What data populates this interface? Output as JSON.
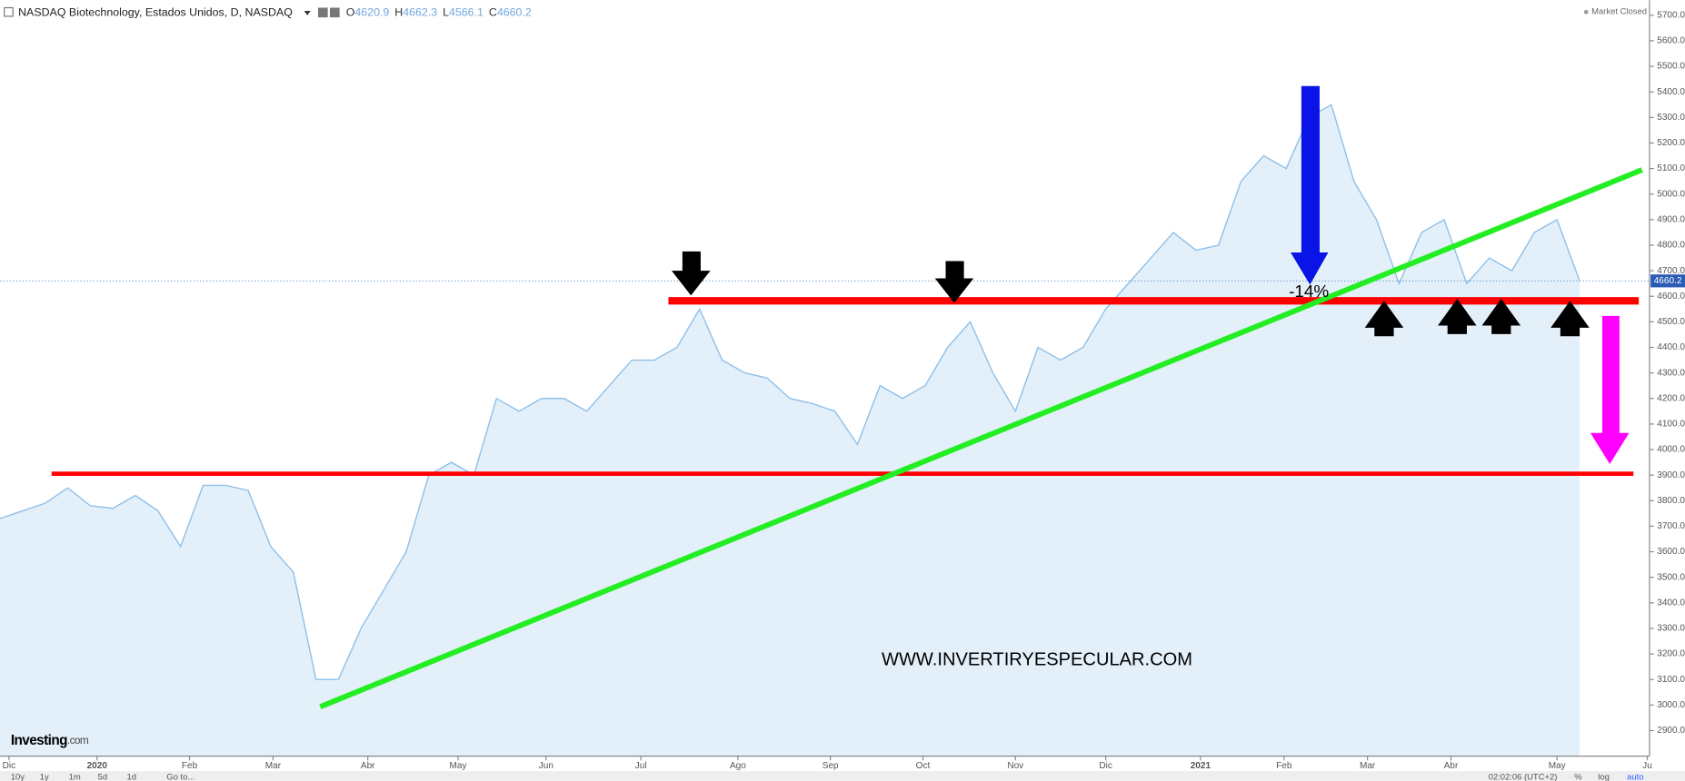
{
  "header": {
    "symbol": "NASDAQ Biotechnology, Estados Unidos, D, NASDAQ",
    "market_status": "Market Closed",
    "ohlc": [
      {
        "label": "O",
        "value": 4620.9
      },
      {
        "label": "H",
        "value": 4662.3
      },
      {
        "label": "L",
        "value": 4566.1
      },
      {
        "label": "C",
        "value": 4660.2
      }
    ]
  },
  "chart_data": {
    "type": "area",
    "series": [
      {
        "color": "#8fc0ea",
        "values": [
          3730,
          3760,
          3790,
          3850,
          3780,
          3770,
          3820,
          3760,
          3620,
          3860,
          3860,
          3840,
          3620,
          3520,
          3100,
          3100,
          3300,
          3450,
          3600,
          3900,
          3950,
          3900,
          4200,
          4150,
          4200,
          4200,
          4150,
          4250,
          4350,
          4350,
          4400,
          4550,
          4350,
          4300,
          4280,
          4200,
          4180,
          4150,
          4020,
          4250,
          4200,
          4250,
          4400,
          4500,
          4300,
          4150,
          4400,
          4350,
          4400,
          4550,
          4650,
          4750,
          4850,
          4780,
          4800,
          5050,
          5150,
          5100,
          5300,
          5350,
          5050,
          4900,
          4650,
          4850,
          4900,
          4650,
          4750,
          4700,
          4850,
          4900,
          4660.2
        ]
      }
    ],
    "xlim": [
      0,
      73.1
    ],
    "xticks": [
      {
        "value": 0.4,
        "label": "Dic"
      },
      {
        "value": 4.3,
        "label": "2020"
      },
      {
        "value": 8.4,
        "label": "Feb"
      },
      {
        "value": 12.1,
        "label": "Mar"
      },
      {
        "value": 16.3,
        "label": "Abr"
      },
      {
        "value": 20.3,
        "label": "May"
      },
      {
        "value": 24.2,
        "label": "Jun"
      },
      {
        "value": 28.4,
        "label": "Jul"
      },
      {
        "value": 32.7,
        "label": "Ago"
      },
      {
        "value": 36.8,
        "label": "Sep"
      },
      {
        "value": 40.9,
        "label": "Oct"
      },
      {
        "value": 45,
        "label": "Nov"
      },
      {
        "value": 49,
        "label": "Dic"
      },
      {
        "value": 53.2,
        "label": "2021"
      },
      {
        "value": 56.9,
        "label": "Feb"
      },
      {
        "value": 60.6,
        "label": "Mar"
      },
      {
        "value": 64.3,
        "label": "Abr"
      },
      {
        "value": 69,
        "label": "May"
      },
      {
        "value": 73,
        "label": "Ju"
      }
    ],
    "ylim": [
      2800,
      5759
    ],
    "yticks": [
      {
        "value": 2900,
        "label": "2900.0"
      },
      {
        "value": 3000,
        "label": "3000.0"
      },
      {
        "value": 3100,
        "label": "3100.0"
      },
      {
        "value": 3200,
        "label": "3200.0"
      },
      {
        "value": 3300,
        "label": "3300.0"
      },
      {
        "value": 3400,
        "label": "3400.0"
      },
      {
        "value": 3500,
        "label": "3500.0"
      },
      {
        "value": 3600,
        "label": "3600.0"
      },
      {
        "value": 3700,
        "label": "3700.0"
      },
      {
        "value": 3800,
        "label": "3800.0"
      },
      {
        "value": 3900,
        "label": "3900.0"
      },
      {
        "value": 4000,
        "label": "4000.0"
      },
      {
        "value": 4100,
        "label": "4100.0"
      },
      {
        "value": 4200,
        "label": "4200.0"
      },
      {
        "value": 4300,
        "label": "4300.0"
      },
      {
        "value": 4400,
        "label": "4400.0"
      },
      {
        "value": 4500,
        "label": "4500.0"
      },
      {
        "value": 4600,
        "label": "4600.0"
      },
      {
        "value": 4700,
        "label": "4700.0"
      },
      {
        "value": 4800,
        "label": "4800.0"
      },
      {
        "value": 4900,
        "label": "4900.0"
      },
      {
        "value": 5000,
        "label": "5000.0"
      },
      {
        "value": 5100,
        "label": "5100.0"
      },
      {
        "value": 5200,
        "label": "5200.0"
      },
      {
        "value": 5300,
        "label": "5300.0"
      },
      {
        "value": 5400,
        "label": "5400.0"
      },
      {
        "value": 5500,
        "label": "5500.0"
      },
      {
        "value": 5600,
        "label": "5600.0"
      },
      {
        "value": 5700,
        "label": "5700.0"
      }
    ],
    "annotations": {
      "drop": "-14%",
      "watermark": "WWW.INVERTIRYESPECULAR.COM",
      "logo": "Investing",
      "logo_suffix": ".com"
    }
  },
  "toolbar": {
    "ranges": [
      "10y",
      "1y",
      "1m",
      "5d",
      "1d"
    ],
    "goto": "Go to...",
    "time": "02:02:06 (UTC+2)",
    "percent": "%",
    "log": "log",
    "auto": "auto"
  }
}
